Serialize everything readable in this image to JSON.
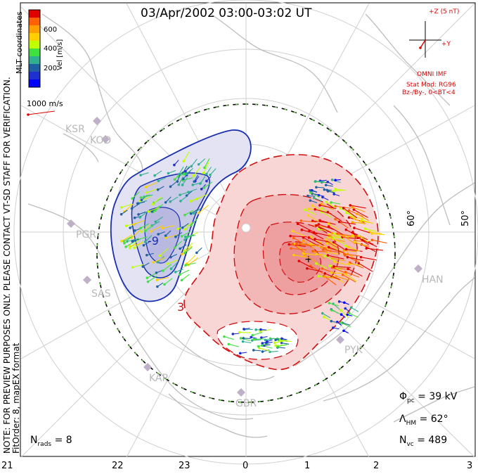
{
  "title": "03/Apr/2002 03:00-03:02 UT",
  "preview_note": "NOTE: FOR PREVIEW PURPOSES ONLY. PLEASE CONTACT VT-SD STAFF FOR VERIFICATION.",
  "fit_note": "FitOrder: 8, mapEX format",
  "colorbar": {
    "label": "Vel [m/s]",
    "coord_label": "MLT coordinates",
    "ticks": [
      "600",
      "400",
      "200"
    ],
    "colors": [
      "#e00000",
      "#ff6000",
      "#ffa000",
      "#ffd000",
      "#c0ff00",
      "#40e040",
      "#30b090",
      "#2060a0",
      "#2030d0",
      "#0000ff"
    ]
  },
  "vector_scale": "1000 m/s",
  "imf": {
    "z_label": "+Z (5 nT)",
    "y_label": "+Y",
    "source": "OMNI IMF",
    "model": "Stat Mod: RG96",
    "condition": "Bz-/By-, 0<BT<4"
  },
  "stations": [
    {
      "code": "KSR"
    },
    {
      "code": "KOD"
    },
    {
      "code": "PGR"
    },
    {
      "code": "SAS"
    },
    {
      "code": "KAP"
    },
    {
      "code": "GBR"
    },
    {
      "code": "PYK"
    },
    {
      "code": "HAN"
    }
  ],
  "contour_labels": [
    "-9",
    "3"
  ],
  "stats": {
    "cpcp_label": "Φ",
    "cpcp_sub": "pc",
    "cpcp_value": "= 39 kV",
    "hm_label": "Λ",
    "hm_sub": "HM",
    "hm_value": "= 62°",
    "nvc_label": "N",
    "nvc_sub": "vc",
    "nvc_value": "= 489",
    "nrads_label": "N",
    "nrads_sub": "rads",
    "nrads_value": "= 8"
  },
  "mlt_ticks": [
    "21",
    "22",
    "23",
    "0",
    "1",
    "2",
    "3"
  ],
  "lat_ticks": [
    "60°",
    "50°"
  ],
  "colors": {
    "negative_cell_stroke": "#1a2fb0",
    "negative_cell_fill": "#dcdcf0",
    "positive_cell_stroke": "#d01010",
    "positive_cell_fill": "#f6c8c8",
    "grid": "#cfcfcf",
    "coastline": "#bdbdbd"
  }
}
